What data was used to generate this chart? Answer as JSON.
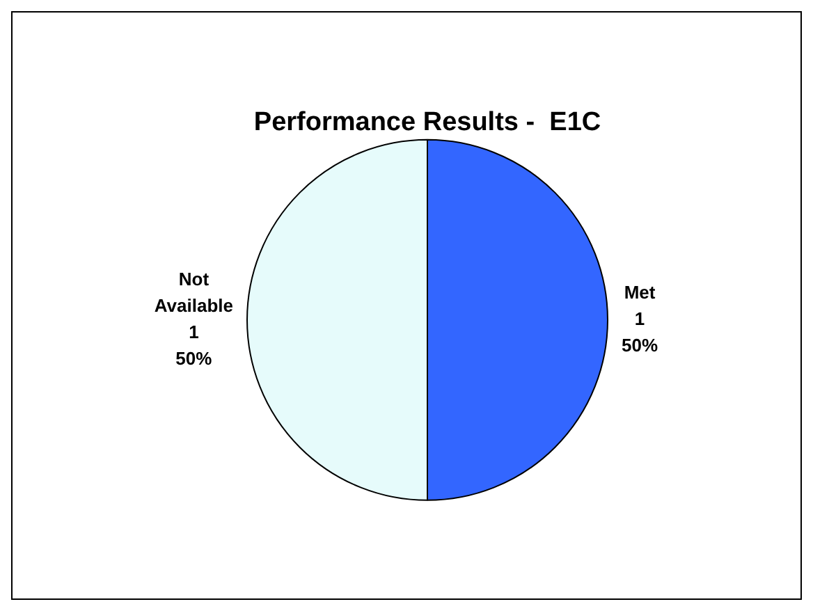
{
  "chart_data": {
    "type": "pie",
    "title": "Performance Results -  E1C",
    "categories": [
      "Met",
      "Not Available"
    ],
    "values": [
      1,
      1
    ],
    "colors": [
      "#3366ff",
      "#e6fbfb"
    ],
    "value_labels": [
      "1\n50%",
      "1\n50%"
    ],
    "legend": false
  }
}
